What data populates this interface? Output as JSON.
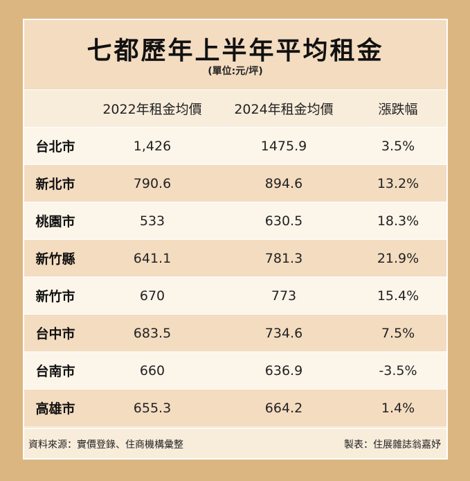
{
  "title": "七都歷年上半年平均租金",
  "unit": "(單位:元/坪)",
  "chart_data": {
    "type": "table",
    "columns": [
      "",
      "2022年租金均價",
      "2024年租金均價",
      "漲跌幅"
    ],
    "rows": [
      {
        "city": "台北市",
        "v2022": "1,426",
        "v2024": "1475.9",
        "change": "3.5%"
      },
      {
        "city": "新北市",
        "v2022": "790.6",
        "v2024": "894.6",
        "change": "13.2%"
      },
      {
        "city": "桃園市",
        "v2022": "533",
        "v2024": "630.5",
        "change": "18.3%"
      },
      {
        "city": "新竹縣",
        "v2022": "641.1",
        "v2024": "781.3",
        "change": "21.9%"
      },
      {
        "city": "新竹市",
        "v2022": "670",
        "v2024": "773",
        "change": "15.4%"
      },
      {
        "city": "台中市",
        "v2022": "683.5",
        "v2024": "734.6",
        "change": "7.5%"
      },
      {
        "city": "台南市",
        "v2022": "660",
        "v2024": "636.9",
        "change": "-3.5%"
      },
      {
        "city": "高雄市",
        "v2022": "655.3",
        "v2024": "664.2",
        "change": "1.4%"
      }
    ]
  },
  "footer": {
    "source": "資料來源：實價登錄、住商機構彙整",
    "credit": "製表：住展雜誌翁嘉妤"
  },
  "colors": {
    "background": "#dcb681",
    "header_band": "#f3dcc0",
    "row_light": "#fcf5ea",
    "row_dark": "#f3dcc0"
  }
}
